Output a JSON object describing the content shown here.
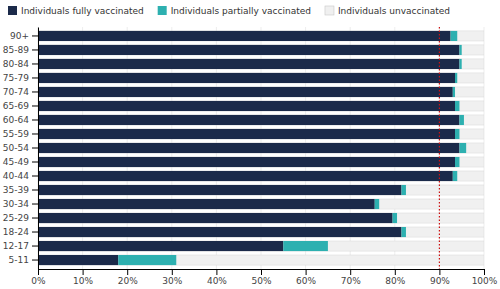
{
  "chart_data": {
    "type": "bar",
    "orientation": "horizontal",
    "stacked": true,
    "grid": true,
    "legend": "upper left",
    "categories": [
      "5-11",
      "12-17",
      "18-24",
      "25-29",
      "30-34",
      "35-39",
      "40-44",
      "45-49",
      "50-54",
      "55-59",
      "60-64",
      "65-69",
      "70-74",
      "75-79",
      "80-84",
      "85-89",
      "90+"
    ],
    "series": [
      {
        "name": "Individuals fully vaccinated",
        "color": "#1b2a4a",
        "values": [
          0.18,
          0.55,
          0.815,
          0.795,
          0.755,
          0.815,
          0.93,
          0.935,
          0.945,
          0.935,
          0.945,
          0.935,
          0.93,
          0.935,
          0.945,
          0.945,
          0.925
        ]
      },
      {
        "name": "Individuals partially vaccinated",
        "color": "#2db0b0",
        "values": [
          0.13,
          0.1,
          0.01,
          0.01,
          0.01,
          0.01,
          0.01,
          0.01,
          0.015,
          0.01,
          0.01,
          0.01,
          0.005,
          0.005,
          0.005,
          0.005,
          0.015
        ]
      },
      {
        "name": "Individuals unvaccinated",
        "color": "#f0f0f0",
        "type": "background",
        "values": [
          1.0,
          1.0,
          1.0,
          1.0,
          1.0,
          1.0,
          1.0,
          1.0,
          1.0,
          1.0,
          1.0,
          1.0,
          1.0,
          1.0,
          1.0,
          1.0,
          1.0
        ]
      }
    ],
    "reference_lines": [
      {
        "value": 0.9,
        "color": "#cc1111",
        "line_style": "dotted"
      }
    ],
    "xlim": [
      0,
      1.0
    ],
    "xticks": [
      {
        "value": 0,
        "label": "0%"
      },
      {
        "value": 0.1,
        "label": "10%"
      },
      {
        "value": 0.2,
        "label": "20%"
      },
      {
        "value": 0.3,
        "label": "30%"
      },
      {
        "value": 0.4,
        "label": "40%"
      },
      {
        "value": 0.5,
        "label": "50%"
      },
      {
        "value": 0.6,
        "label": "60%"
      },
      {
        "value": 0.7,
        "label": "70%"
      },
      {
        "value": 0.8,
        "label": "80%"
      },
      {
        "value": 0.9,
        "label": "90%"
      },
      {
        "value": 1.0,
        "label": "100%"
      }
    ]
  }
}
